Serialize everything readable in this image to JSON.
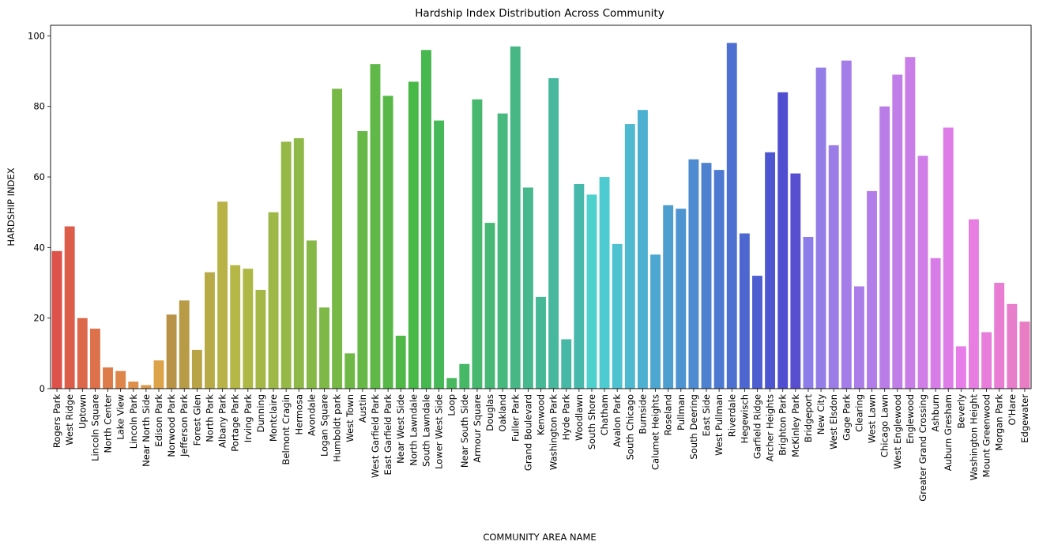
{
  "chart_data": {
    "type": "bar",
    "title": "Hardship Index Distribution Across Community",
    "xlabel": "COMMUNITY AREA NAME",
    "ylabel": "HARDSHIP INDEX",
    "ylim": [
      0,
      103
    ],
    "yticks": [
      0,
      20,
      40,
      60,
      80,
      100
    ],
    "grid": false,
    "categories": [
      "Rogers Park",
      "West Ridge",
      "Uptown",
      "Lincoln Square",
      "North Center",
      "Lake View",
      "Lincoln Park",
      "Near North Side",
      "Edison Park",
      "Norwood Park",
      "Jefferson Park",
      "Forest Glen",
      "North Park",
      "Albany Park",
      "Portage Park",
      "Irving Park",
      "Dunning",
      "Montclaire",
      "Belmont Cragin",
      "Hermosa",
      "Avondale",
      "Logan Square",
      "Humboldt park",
      "West Town",
      "Austin",
      "West Garfield Park",
      "East Garfield Park",
      "Near West Side",
      "North Lawndale",
      "South Lawndale",
      "Lower West Side",
      "Loop",
      "Near South Side",
      "Armour Square",
      "Douglas",
      "Oakland",
      "Fuller Park",
      "Grand Boulevard",
      "Kenwood",
      "Washington Park",
      "Hyde Park",
      "Woodlawn",
      "South Shore",
      "Chatham",
      "Avalon Park",
      "South Chicago",
      "Burnside",
      "Calumet Heights",
      "Roseland",
      "Pullman",
      "South Deering",
      "East Side",
      "West Pullman",
      "Riverdale",
      "Hegewisch",
      "Garfield Ridge",
      "Archer Heights",
      "Brighton Park",
      "McKinley Park",
      "Bridgeport",
      "New City",
      "West Elsdon",
      "Gage Park",
      "Clearing",
      "West Lawn",
      "Chicago Lawn",
      "West Englewood",
      "Englewood",
      "Greater Grand Crossing",
      "Ashburn",
      "Auburn Gresham",
      "Beverly",
      "Washington Height",
      "Mount Greenwood",
      "Morgan Park",
      "O'Hare",
      "Edgewater"
    ],
    "values": [
      39,
      46,
      20,
      17,
      6,
      5,
      2,
      1,
      8,
      21,
      25,
      11,
      33,
      53,
      35,
      34,
      28,
      50,
      70,
      71,
      42,
      23,
      85,
      10,
      73,
      92,
      83,
      15,
      87,
      96,
      76,
      3,
      7,
      82,
      47,
      78,
      97,
      57,
      26,
      88,
      14,
      58,
      55,
      60,
      41,
      75,
      79,
      38,
      52,
      51,
      65,
      64,
      62,
      98,
      44,
      32,
      67,
      84,
      61,
      43,
      91,
      69,
      93,
      29,
      56,
      80,
      89,
      94,
      66,
      37,
      74,
      12,
      48,
      16,
      30,
      24,
      19
    ]
  }
}
